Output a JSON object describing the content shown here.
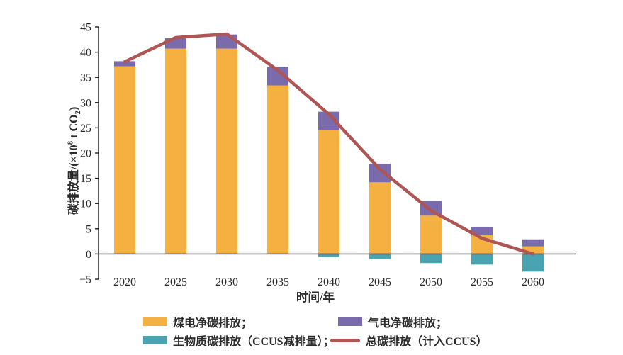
{
  "chart_data": {
    "type": "bar",
    "stacked": true,
    "title": "",
    "xlabel": "时间/年",
    "ylabel": "碳排放量/(×10⁸ t CO₂)",
    "ylim": [
      -5,
      45
    ],
    "ytick_step": 5,
    "yticks": [
      45,
      40,
      35,
      30,
      25,
      20,
      15,
      10,
      5,
      0,
      -5
    ],
    "grid": false,
    "legend_position": "bottom",
    "categories": [
      "2020",
      "2025",
      "2030",
      "2035",
      "2040",
      "2045",
      "2050",
      "2055",
      "2060"
    ],
    "series": [
      {
        "name": "煤电净碳排放",
        "type": "bar",
        "color": "#F4B142",
        "values": [
          37.2,
          40.7,
          40.7,
          33.4,
          24.6,
          14.2,
          7.6,
          3.7,
          1.5
        ]
      },
      {
        "name": "气电净碳排放",
        "type": "bar",
        "color": "#7A6BAD",
        "values": [
          1.0,
          2.1,
          2.8,
          3.7,
          3.6,
          3.7,
          2.9,
          1.7,
          1.4
        ]
      },
      {
        "name": "生物质碳排放（CCUS减排量）",
        "type": "bar",
        "color": "#4AA3B0",
        "values": [
          0,
          0,
          0,
          0,
          -0.6,
          -1.0,
          -1.8,
          -2.1,
          -3.5
        ]
      },
      {
        "name": "总碳排放（计入CCUS）",
        "type": "line",
        "color": "#AE5654",
        "values": [
          38.1,
          42.9,
          43.6,
          36.4,
          27.7,
          16.8,
          8.6,
          3.1,
          0
        ]
      }
    ]
  },
  "axes": {
    "x_label": "时间/年",
    "y_label_prefix": "碳排放量/(×10",
    "y_label_sup": "8",
    "y_label_mid": " t CO",
    "y_label_sub": "2",
    "y_label_suffix": ")"
  },
  "legend": {
    "items": [
      {
        "label": "煤电净碳排放；",
        "color": "#F4B142",
        "swatch": "rect"
      },
      {
        "label": "气电净碳排放；",
        "color": "#7A6BAD",
        "swatch": "rect"
      },
      {
        "label": "生物质碳排放（CCUS减排量）；",
        "color": "#4AA3B0",
        "swatch": "rect"
      },
      {
        "label": "总碳排放（计入CCUS）",
        "color": "#AE5654",
        "swatch": "line"
      }
    ]
  },
  "colors": {
    "axis": "#1a1a1a",
    "text": "#2b2b2b",
    "background": "#ffffff"
  }
}
